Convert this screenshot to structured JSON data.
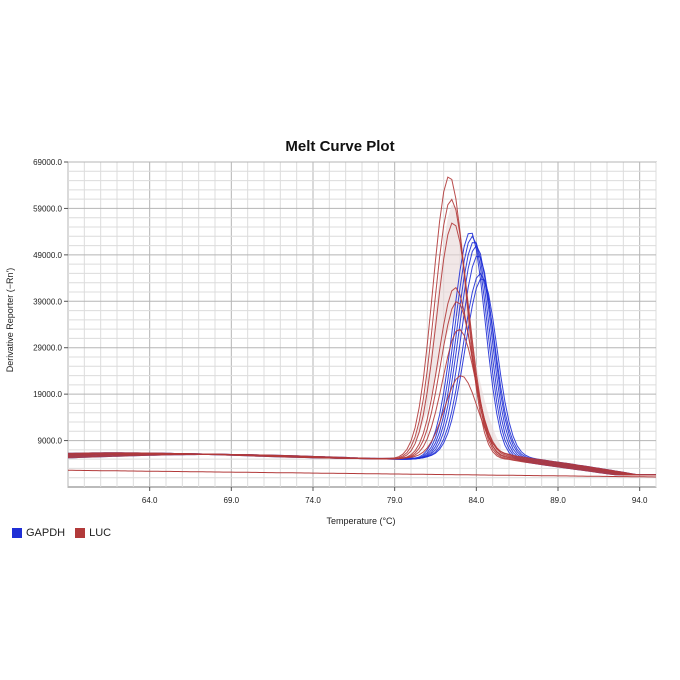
{
  "chart_data": {
    "type": "line",
    "title": "Melt Curve Plot",
    "xlabel": "Temperature (°C)",
    "ylabel": "Derivative Reporter (−Rn')",
    "xlim": [
      59.0,
      95.0
    ],
    "ylim": [
      -1000,
      69000
    ],
    "x_ticks": [
      "64.0",
      "69.0",
      "74.0",
      "79.0",
      "84.0",
      "89.0",
      "94.0"
    ],
    "y_ticks": [
      "9000.0",
      "19000.0",
      "29000.0",
      "39000.0",
      "49000.0",
      "59000.0",
      "69000.0"
    ],
    "grid": true,
    "legend": {
      "placement": "bottom-left"
    },
    "series": [
      {
        "name": "GAPDH",
        "color": "#1f2fd6",
        "peak_x": 84.0,
        "peak_y": [
          54000,
          53000,
          52000,
          51000,
          49000,
          45000,
          44000
        ]
      },
      {
        "name": "LUC",
        "color": "#b23a3a",
        "peak_x": 82.7,
        "peak_y": [
          66000,
          61000,
          56000,
          42000,
          39000,
          33000,
          23000
        ]
      }
    ]
  }
}
